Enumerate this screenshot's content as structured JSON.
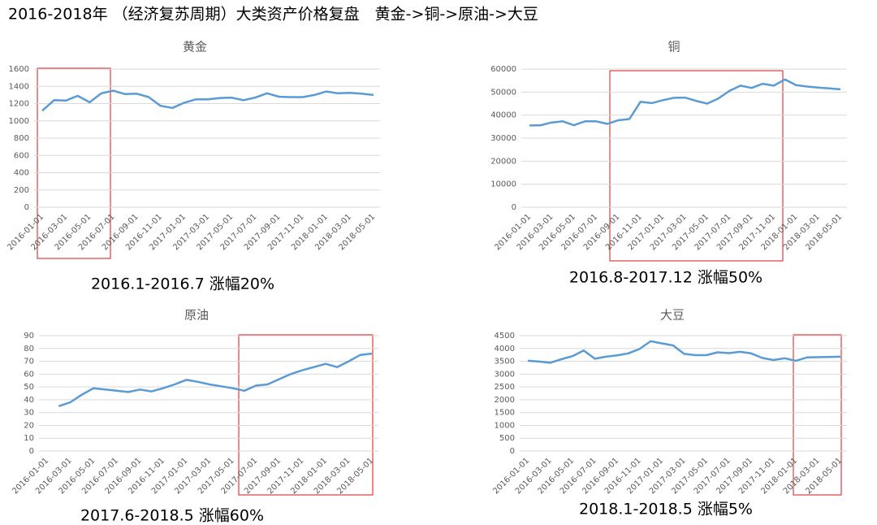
{
  "title": "2016-2018年 （经济复苏周期）大类资产价格复盘　黄金->铜->原油->大豆",
  "chart_data": [
    {
      "type": "line",
      "title": "黄金",
      "annotation": "2016.1-2016.7  涨幅20%",
      "color": "#5b9bd5",
      "grid": true,
      "categories": [
        "2016-01-01",
        null,
        "2016-03-01",
        null,
        "2016-05-01",
        null,
        "2016-07-01",
        null,
        "2016-09-01",
        null,
        "2016-11-01",
        null,
        "2017-01-01",
        null,
        "2017-03-01",
        null,
        "2017-05-01",
        null,
        "2017-07-01",
        null,
        "2017-09-01",
        null,
        "2017-11-01",
        null,
        "2018-01-01",
        null,
        "2018-03-01",
        null,
        "2018-05-01"
      ],
      "values": [
        1118,
        1240,
        1235,
        1290,
        1215,
        1320,
        1350,
        1310,
        1315,
        1275,
        1175,
        1150,
        1210,
        1250,
        1250,
        1265,
        1270,
        1240,
        1270,
        1320,
        1280,
        1275,
        1275,
        1300,
        1340,
        1320,
        1325,
        1315,
        1300
      ],
      "ylim": [
        0,
        1600
      ],
      "yticks": [
        0,
        200,
        400,
        600,
        800,
        1000,
        1200,
        1400,
        1600
      ]
    },
    {
      "type": "line",
      "title": "铜",
      "annotation": "2016.8-2017.12  涨幅50%",
      "color": "#5b9bd5",
      "grid": true,
      "categories": [
        "2016-01-01",
        null,
        "2016-03-01",
        null,
        "2016-05-01",
        null,
        "2016-07-01",
        null,
        "2016-09-01",
        null,
        "2016-11-01",
        null,
        "2017-01-01",
        null,
        "2017-03-01",
        null,
        "2017-05-01",
        null,
        "2017-07-01",
        null,
        "2017-09-01",
        null,
        "2017-11-01",
        null,
        "2018-01-01",
        null,
        "2018-03-01",
        null,
        "2018-05-01"
      ],
      "values": [
        35500,
        35600,
        36800,
        37300,
        35600,
        37300,
        37300,
        36200,
        37800,
        38300,
        45800,
        45200,
        46500,
        47500,
        47600,
        46200,
        45000,
        47200,
        50500,
        52800,
        51800,
        53600,
        52800,
        55500,
        53000,
        52400,
        52000,
        51600,
        51200
      ],
      "ylim": [
        0,
        60000
      ],
      "yticks": [
        0,
        10000,
        20000,
        30000,
        40000,
        50000,
        60000
      ]
    },
    {
      "type": "line",
      "title": "原油",
      "annotation": "2017.6-2018.5  涨幅60%",
      "color": "#5b9bd5",
      "grid": true,
      "categories": [
        "2016-01-01",
        null,
        "2016-03-01",
        null,
        "2016-05-01",
        null,
        "2016-07-01",
        null,
        "2016-09-01",
        null,
        "2016-11-01",
        null,
        "2017-01-01",
        null,
        "2017-03-01",
        null,
        "2017-05-01",
        null,
        "2017-07-01",
        null,
        "2017-09-01",
        null,
        "2017-11-01",
        null,
        "2018-01-01",
        null,
        "2018-03-01",
        null,
        "2018-05-01"
      ],
      "values": [
        null,
        35,
        38,
        44,
        49,
        48,
        47,
        46,
        48,
        46.5,
        49,
        52,
        55.5,
        54,
        52,
        50.5,
        49,
        47,
        51,
        52,
        56,
        60,
        63,
        65.5,
        68,
        65.5,
        70,
        75,
        76
      ],
      "ylim": [
        0,
        90
      ],
      "yticks": [
        0,
        10,
        20,
        30,
        40,
        50,
        60,
        70,
        80,
        90
      ]
    },
    {
      "type": "line",
      "title": "大豆",
      "annotation": "2018.1-2018.5  涨幅5%",
      "color": "#5b9bd5",
      "grid": true,
      "categories": [
        "2016-01-01",
        null,
        "2016-03-01",
        null,
        "2016-05-01",
        null,
        "2016-07-01",
        null,
        "2016-09-01",
        null,
        "2016-11-01",
        null,
        "2017-01-01",
        null,
        "2017-03-01",
        null,
        "2017-05-01",
        null,
        "2017-07-01",
        null,
        "2017-09-01",
        null,
        "2017-11-01",
        null,
        "2018-01-01",
        null,
        "2018-03-01",
        null,
        "2018-05-01"
      ],
      "values": [
        3520,
        3490,
        3440,
        3580,
        3700,
        3920,
        3600,
        3680,
        3730,
        3810,
        3980,
        4280,
        4200,
        4120,
        3790,
        3740,
        3740,
        3850,
        3820,
        3870,
        3810,
        3630,
        3550,
        3620,
        3520,
        3650,
        3660,
        3670,
        3680
      ],
      "ylim": [
        0,
        4500
      ],
      "yticks": [
        0,
        500,
        1000,
        1500,
        2000,
        2500,
        3000,
        3500,
        4000,
        4500
      ]
    }
  ]
}
